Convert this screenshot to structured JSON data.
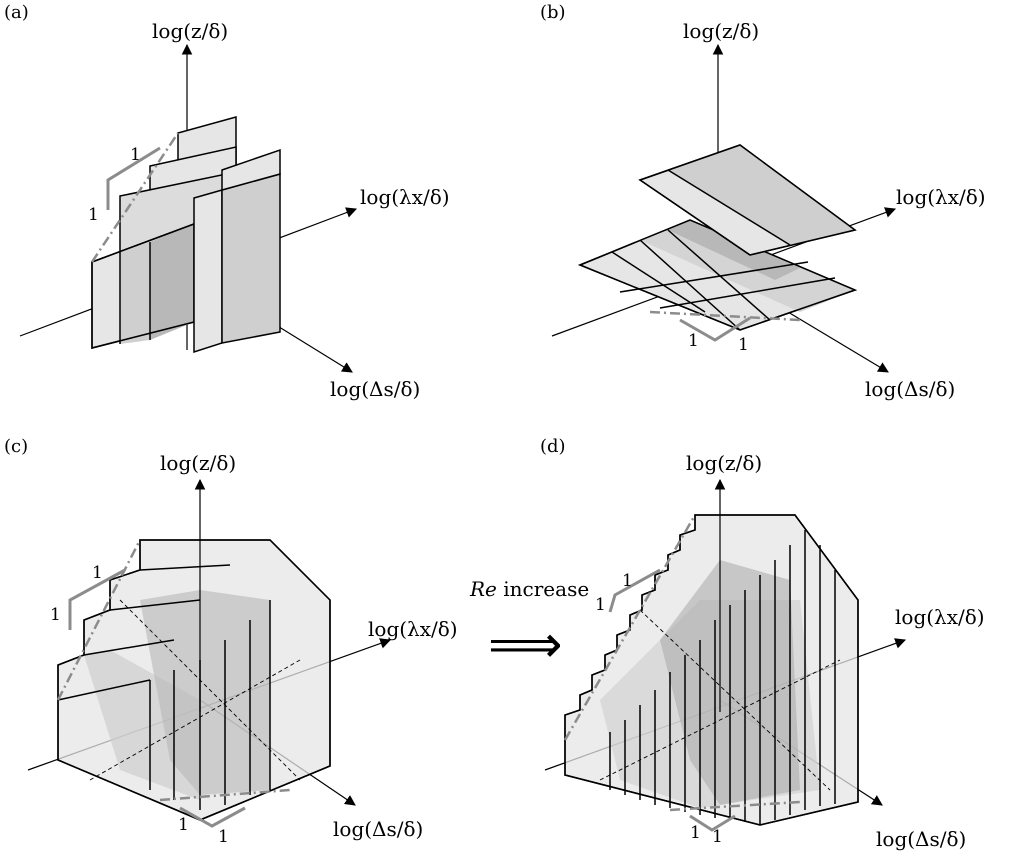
{
  "panels": {
    "a": {
      "label": "(a)",
      "z_axis": "log(z/δ)",
      "x_axis": "log(λx/δ)",
      "s_axis": "log(Δs/δ)",
      "slope_h": "1",
      "slope_v": "1"
    },
    "b": {
      "label": "(b)",
      "z_axis": "log(z/δ)",
      "x_axis": "log(λx/δ)",
      "s_axis": "log(Δs/δ)",
      "slope_h": "1",
      "slope_v": "1"
    },
    "c": {
      "label": "(c)",
      "z_axis": "log(z/δ)",
      "x_axis": "log(λx/δ)",
      "s_axis": "log(Δs/δ)",
      "slope_h": "1",
      "slope_v": "1",
      "base_h": "1",
      "base_v": "1"
    },
    "d": {
      "label": "(d)",
      "z_axis": "log(z/δ)",
      "x_axis": "log(λx/δ)",
      "s_axis": "log(Δs/δ)",
      "slope_h": "1",
      "slope_v": "1",
      "base_h": "1",
      "base_v": "1"
    }
  },
  "arrow": {
    "text_italic": "Re",
    "text_rest": " increase",
    "symbol": "⟹"
  },
  "colors": {
    "light": "#e6e6e6",
    "mid": "#cfcfcf",
    "dark": "#b3b3b3",
    "line_gray": "#8c8c8c"
  }
}
